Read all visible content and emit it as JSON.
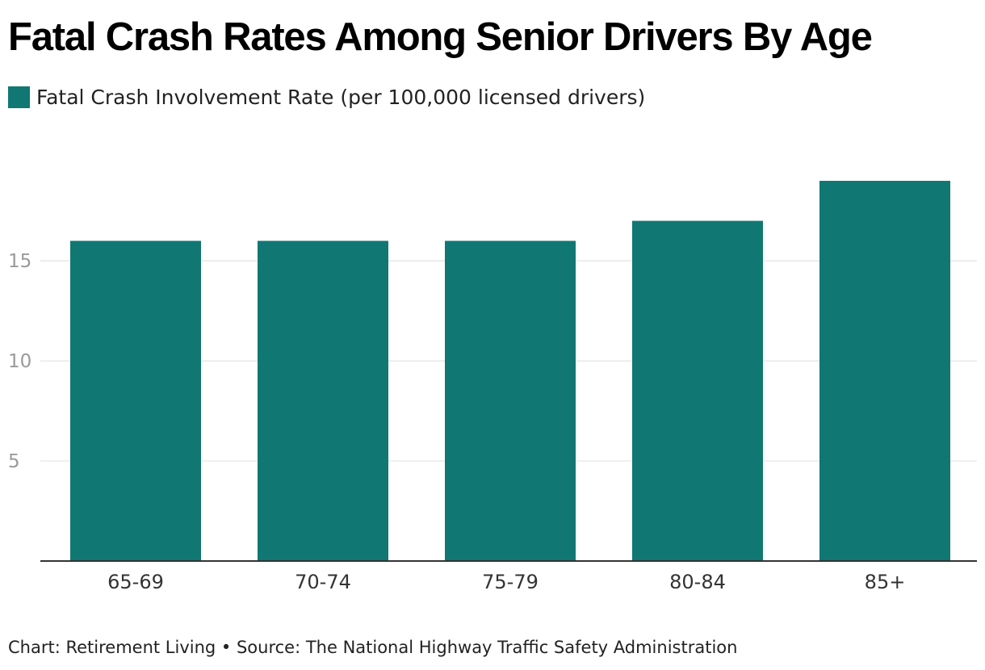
{
  "chart_data": {
    "type": "bar",
    "title": "Fatal Crash Rates Among Senior Drivers By Age",
    "series": [
      {
        "name": "Fatal Crash Involvement Rate (per 100,000 licensed drivers)",
        "values": [
          16,
          16,
          16,
          17,
          19
        ]
      }
    ],
    "categories": [
      "65-69",
      "70-74",
      "75-79",
      "80-84",
      "85+"
    ],
    "xlabel": "",
    "ylabel": "",
    "ylim": [
      0,
      19
    ],
    "yticks": [
      5,
      10,
      15
    ],
    "grid": true,
    "legend": "top-left",
    "bar_color": "#117773",
    "footer": "Chart: Retirement Living • Source: The National Highway Traffic Safety Administration"
  }
}
